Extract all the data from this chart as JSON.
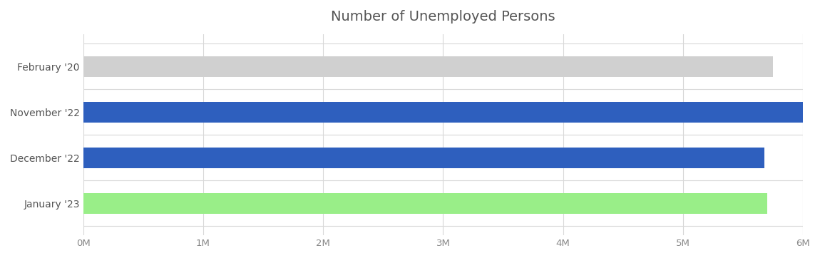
{
  "title": "Number of Unemployed Persons",
  "categories": [
    "January '23",
    "December '22",
    "November '22",
    "February '20"
  ],
  "values": [
    5700000,
    5680000,
    6010000,
    5750000
  ],
  "bar_colors": [
    "#99ee88",
    "#2e5fbe",
    "#2e5fbe",
    "#d0d0d0"
  ],
  "xlim": [
    0,
    6000000
  ],
  "xtick_values": [
    0,
    1000000,
    2000000,
    3000000,
    4000000,
    5000000,
    6000000
  ],
  "xtick_labels": [
    "0M",
    "1M",
    "2M",
    "3M",
    "4M",
    "5M",
    "6M"
  ],
  "background_color": "#ffffff",
  "grid_color": "#d8d8d8",
  "title_color": "#555555",
  "title_fontsize": 14,
  "label_fontsize": 10,
  "tick_fontsize": 9.5,
  "bar_height": 0.45
}
